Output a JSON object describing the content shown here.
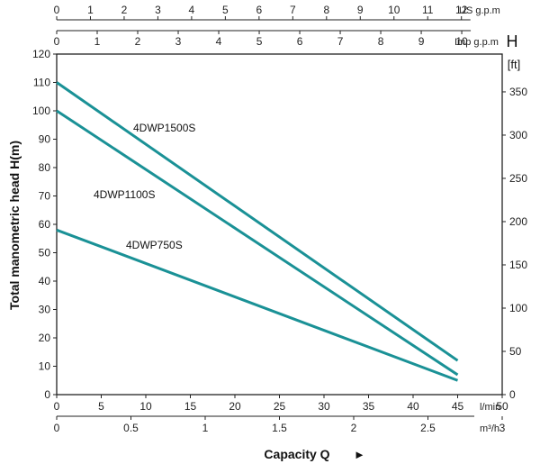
{
  "chart_data": {
    "type": "line",
    "title": "",
    "xlabel": "Capacity Q",
    "x_arrow": "►",
    "ylabel": "Total manometric head H(m)",
    "y2label_line1": "H",
    "y2label_line2": "[ft]",
    "xlim_lmin": [
      0,
      50
    ],
    "ylim_m": [
      0,
      120
    ],
    "x_ticks_lmin": [
      0,
      5,
      10,
      15,
      20,
      25,
      30,
      35,
      40,
      45,
      50
    ],
    "x_unit_lmin": "l/min",
    "x_ticks_m3h": [
      "0",
      "0.5",
      "1",
      "1.5",
      "2",
      "2.5",
      "3"
    ],
    "x_unit_m3h": "m³/h",
    "x_ticks_us_gpm": [
      0,
      1,
      2,
      3,
      4,
      5,
      6,
      7,
      8,
      9,
      10,
      11,
      12
    ],
    "x_unit_us_gpm": "US g.p.m",
    "x_ticks_imp_gpm": [
      0,
      1,
      2,
      3,
      4,
      5,
      6,
      7,
      8,
      9,
      10
    ],
    "x_unit_imp_gpm": "Imp g.p.m",
    "y_ticks_m": [
      0,
      10,
      20,
      30,
      40,
      50,
      60,
      70,
      80,
      90,
      100,
      110,
      120
    ],
    "y_ticks_ft": [
      0,
      50,
      100,
      150,
      200,
      250,
      300,
      350
    ],
    "grid": false,
    "series": [
      {
        "name": "4DWP1500S",
        "x": [
          0,
          45
        ],
        "y": [
          110,
          12
        ]
      },
      {
        "name": "4DWP1100S",
        "x": [
          0,
          45
        ],
        "y": [
          100,
          7
        ]
      },
      {
        "name": "4DWP750S",
        "x": [
          0,
          45
        ],
        "y": [
          58,
          5
        ]
      }
    ],
    "line_color": "#1a9196",
    "axis_color": "#222222"
  }
}
